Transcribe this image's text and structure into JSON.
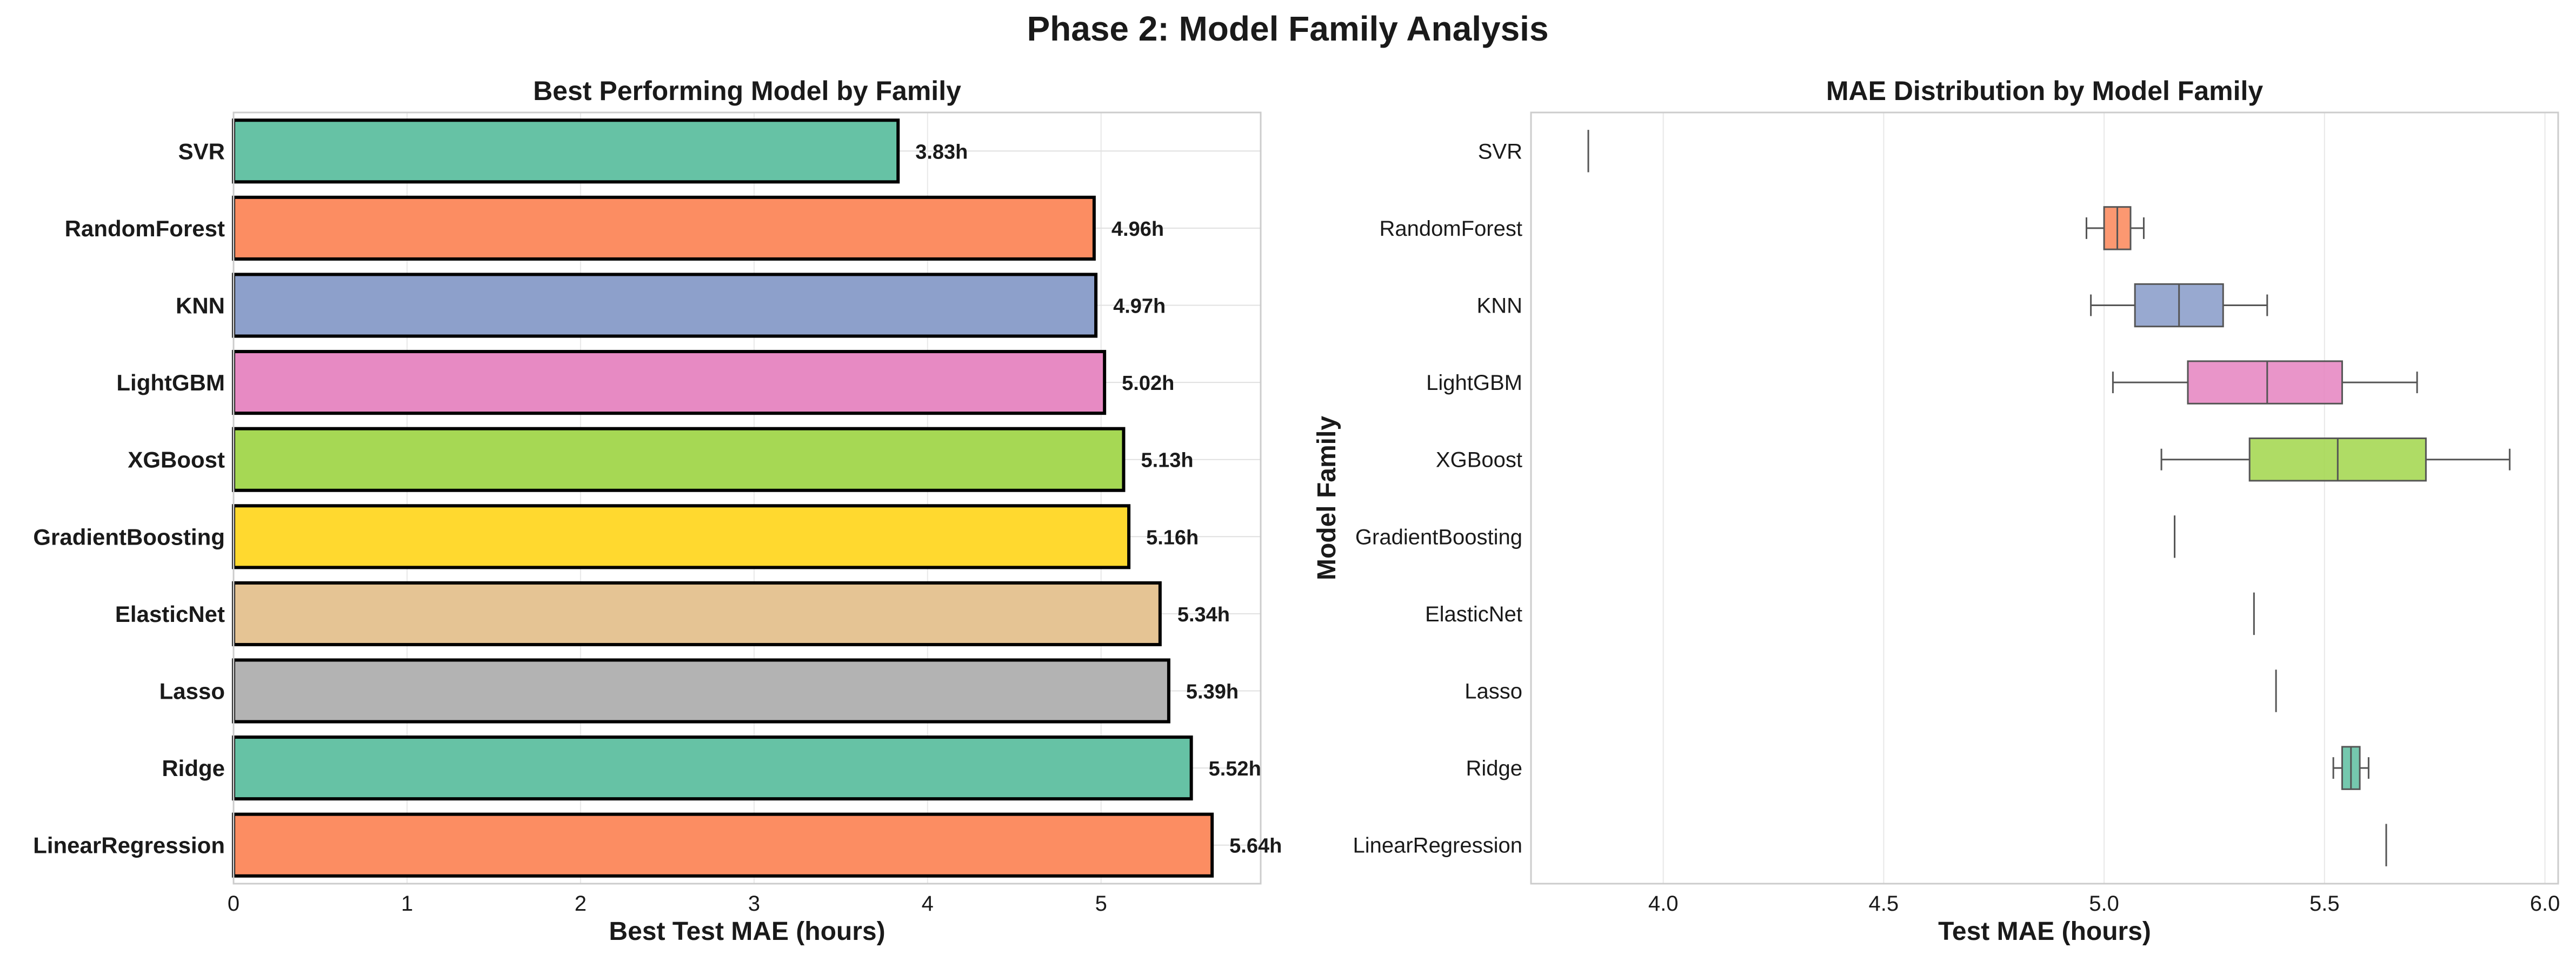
{
  "figure": {
    "title": "Phase 2: Model Family Analysis"
  },
  "chart_data": [
    {
      "type": "bar",
      "orientation": "horizontal",
      "title": "Best Performing Model by Family",
      "xlabel": "Best Test MAE (hours)",
      "ylabel": "",
      "xlim": [
        0,
        5.92
      ],
      "xticks": [
        "0",
        "1",
        "2",
        "3",
        "4",
        "5"
      ],
      "grid": true,
      "value_suffix": "h",
      "categories": [
        "SVR",
        "RandomForest",
        "KNN",
        "LightGBM",
        "XGBoost",
        "GradientBoosting",
        "ElasticNet",
        "Lasso",
        "Ridge",
        "LinearRegression"
      ],
      "values": [
        3.83,
        4.96,
        4.97,
        5.02,
        5.13,
        5.16,
        5.34,
        5.39,
        5.52,
        5.64
      ],
      "labels": [
        "3.83h",
        "4.96h",
        "4.97h",
        "5.02h",
        "5.13h",
        "5.16h",
        "5.34h",
        "5.39h",
        "5.52h",
        "5.64h"
      ],
      "colors": [
        "#66c2a5",
        "#fc8d62",
        "#8da0cb",
        "#e78ac3",
        "#a6d854",
        "#ffd92f",
        "#e5c494",
        "#b3b3b3",
        "#66c2a5",
        "#fc8d62"
      ]
    },
    {
      "type": "box",
      "orientation": "horizontal",
      "title": "MAE Distribution by Model Family",
      "xlabel": "Test MAE (hours)",
      "ylabel": "Model Family",
      "xlim": [
        3.7,
        6.03
      ],
      "xticks": [
        "4.0",
        "4.5",
        "5.0",
        "5.5",
        "6.0"
      ],
      "xtick_values": [
        4.0,
        4.5,
        5.0,
        5.5,
        6.0
      ],
      "grid": true,
      "categories": [
        "SVR",
        "RandomForest",
        "KNN",
        "LightGBM",
        "XGBoost",
        "GradientBoosting",
        "ElasticNet",
        "Lasso",
        "Ridge",
        "LinearRegression"
      ],
      "boxes": [
        {
          "min": 3.83,
          "q1": 3.83,
          "median": 3.83,
          "q3": 3.83,
          "max": 3.83
        },
        {
          "min": 4.96,
          "q1": 5.0,
          "median": 5.03,
          "q3": 5.06,
          "max": 5.09
        },
        {
          "min": 4.97,
          "q1": 5.07,
          "median": 5.17,
          "q3": 5.27,
          "max": 5.37
        },
        {
          "min": 5.02,
          "q1": 5.19,
          "median": 5.37,
          "q3": 5.54,
          "max": 5.71
        },
        {
          "min": 5.13,
          "q1": 5.33,
          "median": 5.53,
          "q3": 5.73,
          "max": 5.92
        },
        {
          "min": 5.16,
          "q1": 5.16,
          "median": 5.16,
          "q3": 5.16,
          "max": 5.16
        },
        {
          "min": 5.34,
          "q1": 5.34,
          "median": 5.34,
          "q3": 5.34,
          "max": 5.34
        },
        {
          "min": 5.39,
          "q1": 5.39,
          "median": 5.39,
          "q3": 5.39,
          "max": 5.39
        },
        {
          "min": 5.52,
          "q1": 5.54,
          "median": 5.56,
          "q3": 5.58,
          "max": 5.6
        },
        {
          "min": 5.64,
          "q1": 5.64,
          "median": 5.64,
          "q3": 5.64,
          "max": 5.64
        }
      ],
      "colors": [
        "#66c2a5",
        "#fc8d62",
        "#8da0cb",
        "#e78ac3",
        "#a6d854",
        "#ffd92f",
        "#e5c494",
        "#b3b3b3",
        "#66c2a5",
        "#fc8d62"
      ]
    }
  ]
}
